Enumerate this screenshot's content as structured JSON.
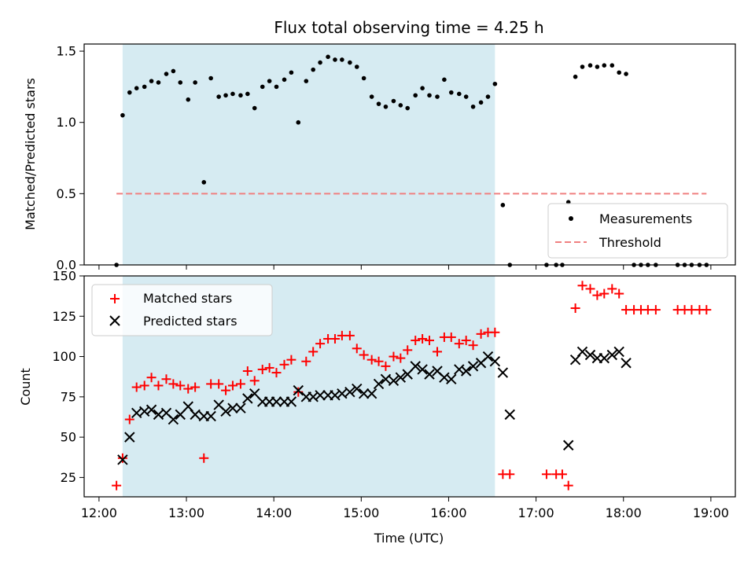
{
  "chart_data": [
    {
      "type": "scatter",
      "panel": "top",
      "title": "Flux total observing time = 4.25 h",
      "ylabel": "Matched/Predicted stars",
      "xlabel": "",
      "x_unit": "time of day (hours, UTC)",
      "xlim": [
        11.83,
        19.28
      ],
      "ylim": [
        0,
        1.55
      ],
      "yticks": [
        0.0,
        0.5,
        1.0,
        1.5
      ],
      "ytick_labels": [
        "0.0",
        "0.5",
        "1.0",
        "1.5"
      ],
      "xticks": [
        12,
        13,
        14,
        15,
        16,
        17,
        18,
        19
      ],
      "xtick_labels": [
        "",
        "",
        "",
        "",
        "",
        "",
        "",
        ""
      ],
      "shaded_interval": {
        "x": [
          12.27,
          16.53
        ],
        "color": "#add8e6"
      },
      "legend_position": "lower-right",
      "series": [
        {
          "name": "Measurements",
          "marker": "dot",
          "color": "#000000",
          "points": [
            [
              12.2,
              0.0
            ],
            [
              12.27,
              1.05
            ],
            [
              12.35,
              1.21
            ],
            [
              12.43,
              1.24
            ],
            [
              12.52,
              1.25
            ],
            [
              12.6,
              1.29
            ],
            [
              12.68,
              1.28
            ],
            [
              12.77,
              1.34
            ],
            [
              12.85,
              1.36
            ],
            [
              12.93,
              1.28
            ],
            [
              13.02,
              1.16
            ],
            [
              13.1,
              1.28
            ],
            [
              13.2,
              0.58
            ],
            [
              13.28,
              1.31
            ],
            [
              13.37,
              1.18
            ],
            [
              13.45,
              1.19
            ],
            [
              13.53,
              1.2
            ],
            [
              13.62,
              1.19
            ],
            [
              13.7,
              1.2
            ],
            [
              13.78,
              1.1
            ],
            [
              13.87,
              1.25
            ],
            [
              13.95,
              1.29
            ],
            [
              14.03,
              1.25
            ],
            [
              14.12,
              1.3
            ],
            [
              14.2,
              1.35
            ],
            [
              14.28,
              1.0
            ],
            [
              14.37,
              1.29
            ],
            [
              14.45,
              1.37
            ],
            [
              14.53,
              1.42
            ],
            [
              14.62,
              1.46
            ],
            [
              14.7,
              1.44
            ],
            [
              14.78,
              1.44
            ],
            [
              14.87,
              1.42
            ],
            [
              14.95,
              1.39
            ],
            [
              15.03,
              1.31
            ],
            [
              15.12,
              1.18
            ],
            [
              15.2,
              1.13
            ],
            [
              15.28,
              1.11
            ],
            [
              15.37,
              1.15
            ],
            [
              15.45,
              1.12
            ],
            [
              15.53,
              1.1
            ],
            [
              15.62,
              1.19
            ],
            [
              15.7,
              1.24
            ],
            [
              15.78,
              1.19
            ],
            [
              15.87,
              1.18
            ],
            [
              15.95,
              1.3
            ],
            [
              16.03,
              1.21
            ],
            [
              16.12,
              1.2
            ],
            [
              16.2,
              1.18
            ],
            [
              16.28,
              1.11
            ],
            [
              16.37,
              1.14
            ],
            [
              16.45,
              1.18
            ],
            [
              16.53,
              1.27
            ],
            [
              16.62,
              0.42
            ],
            [
              16.7,
              0.0
            ],
            [
              17.12,
              0.0
            ],
            [
              17.23,
              0.0
            ],
            [
              17.3,
              0.0
            ],
            [
              17.37,
              0.44
            ],
            [
              17.45,
              1.32
            ],
            [
              17.53,
              1.39
            ],
            [
              17.62,
              1.4
            ],
            [
              17.7,
              1.39
            ],
            [
              17.78,
              1.4
            ],
            [
              17.87,
              1.4
            ],
            [
              17.95,
              1.35
            ],
            [
              18.03,
              1.34
            ],
            [
              18.12,
              0.0
            ],
            [
              18.2,
              0.0
            ],
            [
              18.28,
              0.0
            ],
            [
              18.37,
              0.0
            ],
            [
              18.62,
              0.0
            ],
            [
              18.7,
              0.0
            ],
            [
              18.78,
              0.0
            ],
            [
              18.87,
              0.0
            ],
            [
              18.95,
              0.0
            ]
          ]
        },
        {
          "name": "Threshold",
          "marker": "dashed-line",
          "color": "#f08080",
          "points": [
            [
              12.2,
              0.5
            ],
            [
              18.95,
              0.5
            ]
          ]
        }
      ]
    },
    {
      "type": "scatter",
      "panel": "bottom",
      "title": "",
      "ylabel": "Count",
      "xlabel": "Time (UTC)",
      "x_unit": "time of day (hours, UTC)",
      "xlim": [
        11.83,
        19.28
      ],
      "ylim": [
        13,
        150
      ],
      "yticks": [
        25,
        50,
        75,
        100,
        125,
        150
      ],
      "ytick_labels": [
        "25",
        "50",
        "75",
        "100",
        "125",
        "150"
      ],
      "xticks": [
        12,
        13,
        14,
        15,
        16,
        17,
        18,
        19
      ],
      "xtick_labels": [
        "12:00",
        "13:00",
        "14:00",
        "15:00",
        "16:00",
        "17:00",
        "18:00",
        "19:00"
      ],
      "shaded_interval": {
        "x": [
          12.27,
          16.53
        ],
        "color": "#add8e6"
      },
      "legend_position": "upper-left",
      "series": [
        {
          "name": "Matched stars",
          "marker": "plus",
          "color": "#ff0000",
          "points": [
            [
              12.2,
              20
            ],
            [
              12.27,
              37
            ],
            [
              12.35,
              61
            ],
            [
              12.43,
              81
            ],
            [
              12.52,
              82
            ],
            [
              12.6,
              87
            ],
            [
              12.68,
              82
            ],
            [
              12.77,
              86
            ],
            [
              12.85,
              83
            ],
            [
              12.93,
              82
            ],
            [
              13.02,
              80
            ],
            [
              13.1,
              81
            ],
            [
              13.2,
              37
            ],
            [
              13.28,
              83
            ],
            [
              13.37,
              83
            ],
            [
              13.45,
              79
            ],
            [
              13.53,
              82
            ],
            [
              13.62,
              83
            ],
            [
              13.7,
              91
            ],
            [
              13.78,
              85
            ],
            [
              13.87,
              92
            ],
            [
              13.95,
              93
            ],
            [
              14.03,
              90
            ],
            [
              14.12,
              95
            ],
            [
              14.2,
              98
            ],
            [
              14.28,
              78
            ],
            [
              14.37,
              97
            ],
            [
              14.45,
              103
            ],
            [
              14.53,
              108
            ],
            [
              14.62,
              111
            ],
            [
              14.7,
              111
            ],
            [
              14.78,
              113
            ],
            [
              14.87,
              113
            ],
            [
              14.95,
              105
            ],
            [
              15.03,
              101
            ],
            [
              15.12,
              98
            ],
            [
              15.2,
              97
            ],
            [
              15.28,
              94
            ],
            [
              15.37,
              100
            ],
            [
              15.45,
              99
            ],
            [
              15.53,
              104
            ],
            [
              15.62,
              110
            ],
            [
              15.7,
              111
            ],
            [
              15.78,
              110
            ],
            [
              15.87,
              103
            ],
            [
              15.95,
              112
            ],
            [
              16.03,
              112
            ],
            [
              16.12,
              108
            ],
            [
              16.2,
              110
            ],
            [
              16.28,
              107
            ],
            [
              16.37,
              114
            ],
            [
              16.45,
              115
            ],
            [
              16.53,
              115
            ],
            [
              16.62,
              27
            ],
            [
              16.7,
              27
            ],
            [
              17.12,
              27
            ],
            [
              17.23,
              27
            ],
            [
              17.3,
              27
            ],
            [
              17.37,
              20
            ],
            [
              17.45,
              130
            ],
            [
              17.53,
              144
            ],
            [
              17.62,
              142
            ],
            [
              17.7,
              138
            ],
            [
              17.78,
              139
            ],
            [
              17.87,
              142
            ],
            [
              17.95,
              139
            ],
            [
              18.03,
              129
            ],
            [
              18.12,
              129
            ],
            [
              18.2,
              129
            ],
            [
              18.28,
              129
            ],
            [
              18.37,
              129
            ],
            [
              18.62,
              129
            ],
            [
              18.7,
              129
            ],
            [
              18.78,
              129
            ],
            [
              18.87,
              129
            ],
            [
              18.95,
              129
            ]
          ]
        },
        {
          "name": "Predicted stars",
          "marker": "x",
          "color": "#000000",
          "points": [
            [
              12.27,
              36
            ],
            [
              12.35,
              50
            ],
            [
              12.43,
              65
            ],
            [
              12.52,
              66
            ],
            [
              12.6,
              67
            ],
            [
              12.68,
              64
            ],
            [
              12.77,
              65
            ],
            [
              12.85,
              61
            ],
            [
              12.93,
              64
            ],
            [
              13.02,
              69
            ],
            [
              13.1,
              64
            ],
            [
              13.2,
              63
            ],
            [
              13.28,
              63
            ],
            [
              13.37,
              70
            ],
            [
              13.45,
              66
            ],
            [
              13.53,
              68
            ],
            [
              13.62,
              68
            ],
            [
              13.7,
              74
            ],
            [
              13.78,
              77
            ],
            [
              13.87,
              72
            ],
            [
              13.95,
              72
            ],
            [
              14.03,
              72
            ],
            [
              14.12,
              72
            ],
            [
              14.2,
              72
            ],
            [
              14.28,
              79
            ],
            [
              14.37,
              75
            ],
            [
              14.45,
              75
            ],
            [
              14.53,
              76
            ],
            [
              14.62,
              76
            ],
            [
              14.7,
              76
            ],
            [
              14.78,
              77
            ],
            [
              14.87,
              78
            ],
            [
              14.95,
              80
            ],
            [
              15.03,
              77
            ],
            [
              15.12,
              77
            ],
            [
              15.2,
              83
            ],
            [
              15.28,
              86
            ],
            [
              15.37,
              85
            ],
            [
              15.45,
              87
            ],
            [
              15.53,
              89
            ],
            [
              15.62,
              94
            ],
            [
              15.7,
              92
            ],
            [
              15.78,
              89
            ],
            [
              15.87,
              91
            ],
            [
              15.95,
              87
            ],
            [
              16.03,
              86
            ],
            [
              16.12,
              92
            ],
            [
              16.2,
              91
            ],
            [
              16.28,
              94
            ],
            [
              16.37,
              96
            ],
            [
              16.45,
              100
            ],
            [
              16.53,
              97
            ],
            [
              16.62,
              90
            ],
            [
              16.7,
              64
            ],
            [
              17.37,
              45
            ],
            [
              17.45,
              98
            ],
            [
              17.53,
              103
            ],
            [
              17.62,
              101
            ],
            [
              17.7,
              99
            ],
            [
              17.78,
              99
            ],
            [
              17.87,
              101
            ],
            [
              17.95,
              103
            ],
            [
              18.03,
              96
            ]
          ]
        }
      ]
    }
  ]
}
